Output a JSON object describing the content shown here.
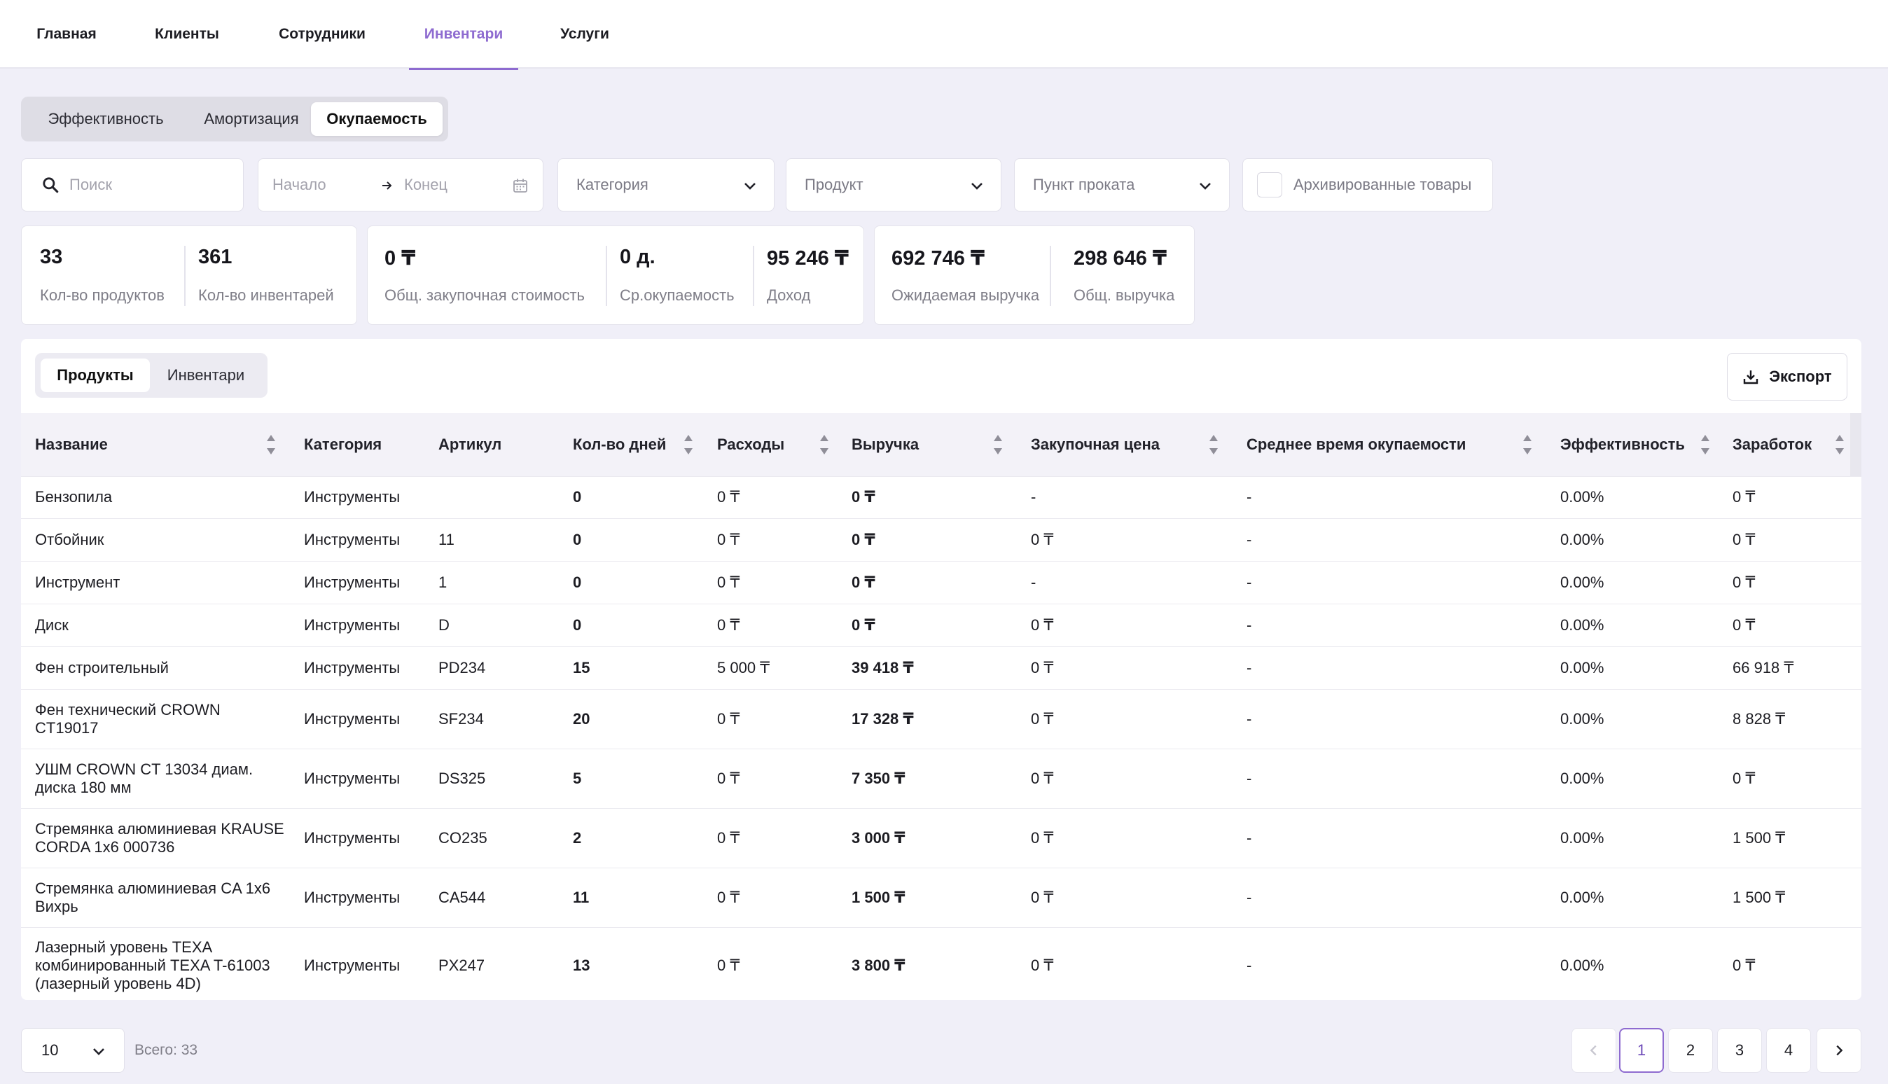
{
  "nav": {
    "items": [
      {
        "label": "Главная"
      },
      {
        "label": "Клиенты"
      },
      {
        "label": "Сотрудники"
      },
      {
        "label": "Инвентари",
        "active": true
      },
      {
        "label": "Услуги"
      }
    ]
  },
  "tabs": [
    {
      "label": "Эффективность"
    },
    {
      "label": "Амортизация"
    },
    {
      "label": "Окупаемость",
      "active": true
    }
  ],
  "filters": {
    "search_placeholder": "Поиск",
    "date_start": "Начало",
    "date_end": "Конец",
    "category": "Категория",
    "product": "Продукт",
    "rental_point": "Пункт проката",
    "archived_label": "Архивированные товары",
    "archived_checked": false
  },
  "stats": [
    {
      "value": "33",
      "label": "Кол-во продуктов"
    },
    {
      "value": "361",
      "label": "Кол-во инвентарей"
    },
    {
      "value": "0 ₸",
      "label": "Общ. закупочная стоимость"
    },
    {
      "value": "0 д.",
      "label": "Ср.окупаемость"
    },
    {
      "value": "95 246 ₸",
      "label": "Доход"
    },
    {
      "value": "692 746 ₸",
      "label": "Ожидаемая выручка"
    },
    {
      "value": "298 646 ₸",
      "label": "Общ. выручка"
    }
  ],
  "subtabs": [
    {
      "label": "Продукты",
      "active": true
    },
    {
      "label": "Инвентари"
    }
  ],
  "export_label": "Экспорт",
  "table": {
    "columns": [
      "Название",
      "Категория",
      "Артикул",
      "Кол-во дней",
      "Расходы",
      "Выручка",
      "Закупочная цена",
      "Среднее время окупаемости",
      "Эффективность",
      "Заработок"
    ],
    "rows": [
      [
        "Бензопила",
        "Инструменты",
        "",
        "0",
        "0 ₸",
        "0 ₸",
        "-",
        "-",
        "0.00%",
        "0 ₸"
      ],
      [
        "Отбойник",
        "Инструменты",
        "11",
        "0",
        "0 ₸",
        "0 ₸",
        "0 ₸",
        "-",
        "0.00%",
        "0 ₸"
      ],
      [
        "Инструмент",
        "Инструменты",
        "1",
        "0",
        "0 ₸",
        "0 ₸",
        "-",
        "-",
        "0.00%",
        "0 ₸"
      ],
      [
        "Диск",
        "Инструменты",
        "D",
        "0",
        "0 ₸",
        "0 ₸",
        "0 ₸",
        "-",
        "0.00%",
        "0 ₸"
      ],
      [
        "Фен строительный",
        "Инструменты",
        "PD234",
        "15",
        "5 000 ₸",
        "39 418 ₸",
        "0 ₸",
        "-",
        "0.00%",
        "66 918 ₸"
      ],
      [
        "Фен технический CROWN CT19017",
        "Инструменты",
        "SF234",
        "20",
        "0 ₸",
        "17 328 ₸",
        "0 ₸",
        "-",
        "0.00%",
        "8 828 ₸"
      ],
      [
        "УШМ CROWN CT 13034 диам. диска 180 мм",
        "Инструменты",
        "DS325",
        "5",
        "0 ₸",
        "7 350 ₸",
        "0 ₸",
        "-",
        "0.00%",
        "0 ₸"
      ],
      [
        "Стремянка алюминиевая KRAUSE CORDA 1x6 000736",
        "Инструменты",
        "CO235",
        "2",
        "0 ₸",
        "3 000 ₸",
        "0 ₸",
        "-",
        "0.00%",
        "1 500 ₸"
      ],
      [
        "Стремянка алюминиевая CA 1x6 Вихрь",
        "Инструменты",
        "CA544",
        "11",
        "0 ₸",
        "1 500 ₸",
        "0 ₸",
        "-",
        "0.00%",
        "1 500 ₸"
      ],
      [
        "Лазерный уровень TEXA комбинированный TEXA T-61003 (лазерный уровень 4D)",
        "Инструменты",
        "PX247",
        "13",
        "0 ₸",
        "3 800 ₸",
        "0 ₸",
        "-",
        "0.00%",
        "0 ₸"
      ]
    ]
  },
  "footer": {
    "page_size": "10",
    "total": "Всего: 33",
    "pages": [
      "1",
      "2",
      "3",
      "4"
    ],
    "current_page": "1"
  },
  "colors": {
    "accent": "#8e6bd0",
    "background": "#f0eff8"
  },
  "icons": {
    "search": "search-icon",
    "calendar": "calendar-icon",
    "chevron": "chevron-down-icon",
    "download": "download-icon",
    "sort": "sort-icon"
  }
}
